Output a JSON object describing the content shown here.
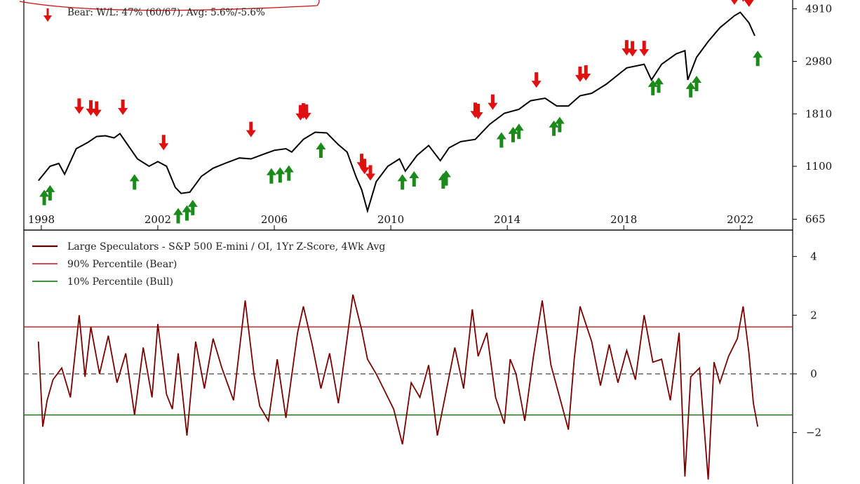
{
  "chart_data": [
    {
      "type": "line",
      "title": "",
      "xlabel": "",
      "ylabel": "",
      "y_scale": "log",
      "xlim": [
        1997.4,
        2023.8
      ],
      "ylim": [
        600,
        6100
      ],
      "x_ticks": [
        1998,
        2002,
        2006,
        2010,
        2014,
        2018,
        2022
      ],
      "x_tick_labels": [
        "1998",
        "2002",
        "2006",
        "2010",
        "2014",
        "2018",
        "2022"
      ],
      "y_ticks": [
        665,
        1100,
        1810,
        2980,
        4910
      ],
      "y_tick_labels": [
        "665",
        "1100",
        "1810",
        "2980",
        "4910"
      ],
      "legend_stat_bear": "Bear:   W/L: 47% (60/67), Avg: 5.6%/-5.6%",
      "series": [
        {
          "name": "",
          "color": "#000000",
          "x": [
            1997.9,
            1998.3,
            1998.6,
            1998.8,
            1999.2,
            1999.6,
            1999.9,
            2000.2,
            2000.5,
            2000.7,
            2001.0,
            2001.3,
            2001.7,
            2002.0,
            2002.3,
            2002.6,
            2002.8,
            2003.1,
            2003.5,
            2003.9,
            2004.3,
            2004.8,
            2005.2,
            2005.6,
            2006.0,
            2006.4,
            2006.6,
            2007.0,
            2007.4,
            2007.8,
            2008.2,
            2008.5,
            2008.8,
            2009.0,
            2009.2,
            2009.5,
            2009.9,
            2010.3,
            2010.5,
            2010.9,
            2011.3,
            2011.7,
            2012.0,
            2012.4,
            2012.9,
            2013.4,
            2013.9,
            2014.4,
            2014.8,
            2015.3,
            2015.7,
            2016.1,
            2016.5,
            2016.9,
            2017.4,
            2017.9,
            2018.1,
            2018.7,
            2018.95,
            2019.3,
            2019.8,
            2020.1,
            2020.2,
            2020.5,
            2020.9,
            2021.3,
            2021.8,
            2022.0,
            2022.3,
            2022.5
          ],
          "y": [
            960,
            1100,
            1130,
            1020,
            1300,
            1380,
            1460,
            1470,
            1440,
            1500,
            1330,
            1180,
            1100,
            1150,
            1100,
            900,
            850,
            860,
            1000,
            1080,
            1130,
            1190,
            1180,
            1230,
            1280,
            1300,
            1260,
            1420,
            1520,
            1510,
            1350,
            1260,
            1000,
            880,
            720,
            950,
            1100,
            1180,
            1050,
            1220,
            1340,
            1160,
            1310,
            1390,
            1420,
            1640,
            1820,
            1890,
            2050,
            2100,
            1950,
            1950,
            2150,
            2200,
            2400,
            2680,
            2800,
            2900,
            2500,
            2900,
            3200,
            3300,
            2500,
            3100,
            3600,
            4100,
            4600,
            4750,
            4300,
            3800
          ]
        }
      ],
      "arrows_bear": [
        {
          "x": 1999.3,
          "y": 1810
        },
        {
          "x": 1999.7,
          "y": 1780
        },
        {
          "x": 1999.9,
          "y": 1760
        },
        {
          "x": 2000.8,
          "y": 1790
        },
        {
          "x": 2002.2,
          "y": 1280
        },
        {
          "x": 2005.2,
          "y": 1450
        },
        {
          "x": 2006.9,
          "y": 1700
        },
        {
          "x": 2007.0,
          "y": 1730
        },
        {
          "x": 2007.1,
          "y": 1710
        },
        {
          "x": 2009.0,
          "y": 1070
        },
        {
          "x": 2009.1,
          "y": 1020
        },
        {
          "x": 2009.3,
          "y": 960
        },
        {
          "x": 2012.9,
          "y": 1740
        },
        {
          "x": 2013.0,
          "y": 1720
        },
        {
          "x": 2013.5,
          "y": 1880
        },
        {
          "x": 2015.0,
          "y": 2320
        },
        {
          "x": 2016.5,
          "y": 2450
        },
        {
          "x": 2016.7,
          "y": 2480
        },
        {
          "x": 2018.1,
          "y": 3150
        },
        {
          "x": 2018.3,
          "y": 3120
        },
        {
          "x": 2018.7,
          "y": 3130
        },
        {
          "x": 2021.8,
          "y": 5100
        },
        {
          "x": 2022.0,
          "y": 5320
        },
        {
          "x": 2022.1,
          "y": 5250
        },
        {
          "x": 2022.3,
          "y": 5000
        }
      ],
      "arrows_bull": [
        {
          "x": 1998.1,
          "y": 880
        },
        {
          "x": 1998.3,
          "y": 920
        },
        {
          "x": 2001.2,
          "y": 1020
        },
        {
          "x": 2002.7,
          "y": 740
        },
        {
          "x": 2003.0,
          "y": 760
        },
        {
          "x": 2003.2,
          "y": 800
        },
        {
          "x": 2005.9,
          "y": 1080
        },
        {
          "x": 2006.2,
          "y": 1090
        },
        {
          "x": 2006.5,
          "y": 1110
        },
        {
          "x": 2007.6,
          "y": 1380
        },
        {
          "x": 2010.4,
          "y": 1020
        },
        {
          "x": 2010.8,
          "y": 1050
        },
        {
          "x": 2011.8,
          "y": 1030
        },
        {
          "x": 2011.9,
          "y": 1060
        },
        {
          "x": 2013.8,
          "y": 1520
        },
        {
          "x": 2014.2,
          "y": 1600
        },
        {
          "x": 2014.4,
          "y": 1650
        },
        {
          "x": 2015.6,
          "y": 1700
        },
        {
          "x": 2015.8,
          "y": 1760
        },
        {
          "x": 2019.0,
          "y": 2500
        },
        {
          "x": 2019.2,
          "y": 2560
        },
        {
          "x": 2020.3,
          "y": 2450
        },
        {
          "x": 2020.5,
          "y": 2600
        },
        {
          "x": 2022.6,
          "y": 3300
        }
      ]
    },
    {
      "type": "line",
      "title": "",
      "xlabel": "",
      "ylabel": "",
      "xlim": [
        1997.4,
        2023.8
      ],
      "ylim": [
        -3.8,
        4.9
      ],
      "y_ticks": [
        -2,
        0,
        2,
        4
      ],
      "y_tick_labels": [
        "−2",
        "0",
        "2",
        "4"
      ],
      "legend_placement": "top-left",
      "series": [
        {
          "name": "Large Speculators - S&P 500 E-mini / OI, 1Yr Z-Score, 4Wk Avg",
          "color": "#7a0000",
          "x": [
            1997.9,
            1998.05,
            1998.2,
            1998.4,
            1998.7,
            1999.0,
            1999.3,
            1999.5,
            1999.7,
            2000.0,
            2000.3,
            2000.6,
            2000.9,
            2001.2,
            2001.5,
            2001.8,
            2002.0,
            2002.3,
            2002.5,
            2002.7,
            2003.0,
            2003.3,
            2003.6,
            2003.9,
            2004.2,
            2004.6,
            2005.0,
            2005.3,
            2005.5,
            2005.8,
            2006.1,
            2006.4,
            2006.8,
            2007.0,
            2007.3,
            2007.6,
            2007.9,
            2008.2,
            2008.5,
            2008.7,
            2009.0,
            2009.2,
            2009.5,
            2009.8,
            2010.1,
            2010.4,
            2010.7,
            2011.0,
            2011.3,
            2011.6,
            2011.9,
            2012.2,
            2012.5,
            2012.8,
            2013.0,
            2013.3,
            2013.6,
            2013.9,
            2014.1,
            2014.3,
            2014.6,
            2014.9,
            2015.2,
            2015.5,
            2015.8,
            2016.1,
            2016.3,
            2016.5,
            2016.9,
            2017.2,
            2017.5,
            2017.8,
            2018.1,
            2018.4,
            2018.7,
            2019.0,
            2019.3,
            2019.6,
            2019.9,
            2020.1,
            2020.3,
            2020.6,
            2020.9,
            2021.1,
            2021.3,
            2021.6,
            2021.9,
            2022.1,
            2022.3,
            2022.45,
            2022.6
          ],
          "y": [
            1.1,
            -1.8,
            -0.9,
            -0.2,
            0.2,
            -0.8,
            2.0,
            -0.1,
            1.6,
            0.0,
            1.3,
            -0.3,
            0.7,
            -1.4,
            0.9,
            -0.8,
            1.7,
            -0.7,
            -1.2,
            0.7,
            -2.1,
            1.1,
            -0.5,
            1.2,
            0.2,
            -0.9,
            2.5,
            0.0,
            -1.1,
            -1.6,
            0.5,
            -1.5,
            1.4,
            2.3,
            1.0,
            -0.5,
            0.7,
            -1.0,
            1.2,
            2.7,
            1.5,
            0.5,
            0.0,
            -0.6,
            -1.2,
            -2.4,
            -0.3,
            -0.8,
            0.3,
            -2.1,
            -0.6,
            0.9,
            -0.5,
            2.2,
            0.6,
            1.4,
            -0.8,
            -1.7,
            0.5,
            0.0,
            -1.6,
            0.6,
            2.5,
            0.3,
            -0.8,
            -1.9,
            0.5,
            2.3,
            1.1,
            -0.4,
            1.0,
            -0.3,
            0.8,
            -0.2,
            2.0,
            0.4,
            0.5,
            -0.9,
            1.4,
            -3.5,
            -0.1,
            0.2,
            -3.6,
            0.4,
            -0.3,
            0.6,
            1.2,
            2.3,
            0.7,
            -1.0,
            -1.8
          ]
        },
        {
          "name": "90% Percentile (Bear)",
          "color": "#d01010",
          "x": [
            1997.4,
            2023.8
          ],
          "y": [
            1.6,
            1.6
          ]
        },
        {
          "name": "10% Percentile (Bull)",
          "color": "#007000",
          "x": [
            1997.4,
            2023.8
          ],
          "y": [
            -1.4,
            -1.4
          ]
        }
      ],
      "zero_line": 0
    }
  ]
}
